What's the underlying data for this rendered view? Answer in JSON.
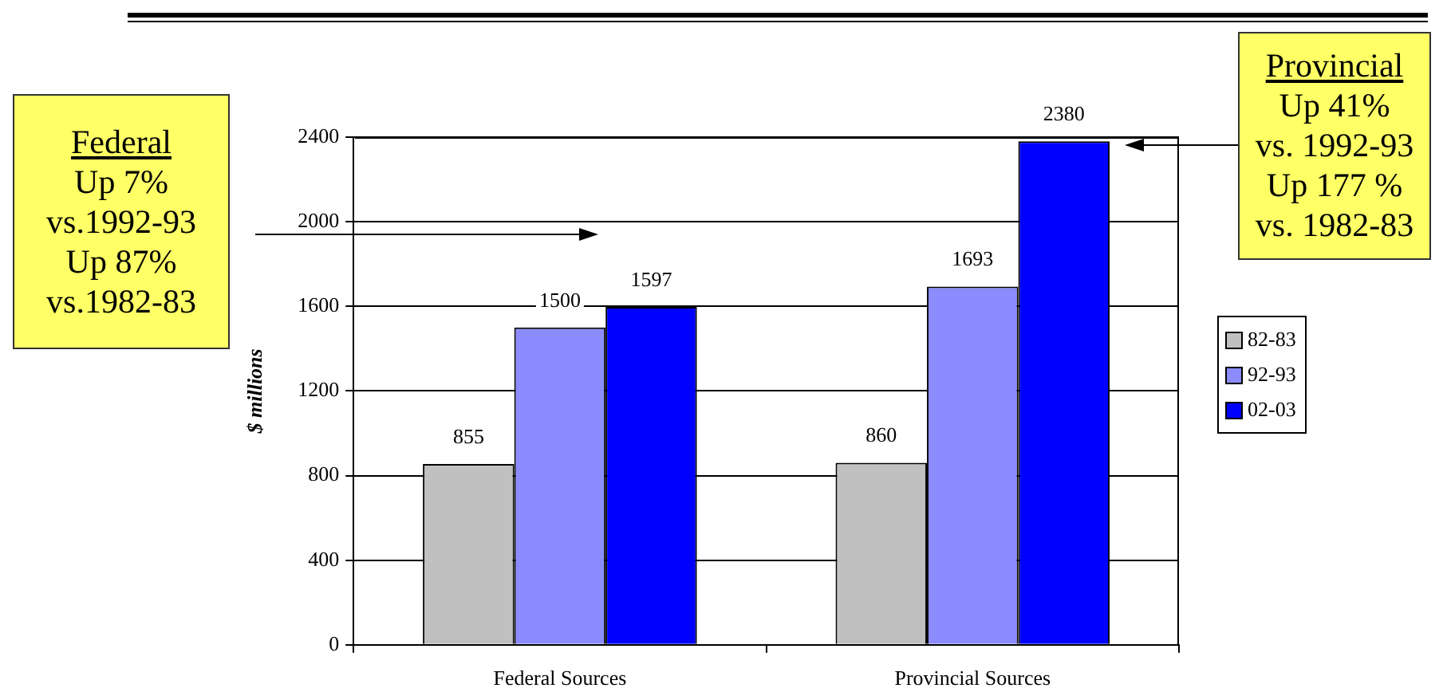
{
  "chart_data": {
    "type": "bar",
    "categories": [
      "Federal Sources",
      "Provincial Sources"
    ],
    "series": [
      {
        "name": "82-83",
        "color": "#c0c0c0",
        "values": [
          855,
          860
        ]
      },
      {
        "name": "92-93",
        "color": "#8c8cff",
        "values": [
          1500,
          1693
        ]
      },
      {
        "name": "02-03",
        "color": "#0000ff",
        "values": [
          1597,
          2380
        ]
      }
    ],
    "ylabel": "$ millions",
    "ylim": [
      0,
      2400
    ],
    "yticks": [
      0,
      400,
      800,
      1200,
      1600,
      2000,
      2400
    ],
    "grid": "y",
    "legend": "right",
    "data_labels": true,
    "annotations": [
      "Federal\nUp 7%\nvs.1992-93\nUp 87%\nvs.1982-83",
      "Provincial\nUp 41%\nvs. 1992-93\nUp 177 %\nvs. 1982-83"
    ]
  }
}
